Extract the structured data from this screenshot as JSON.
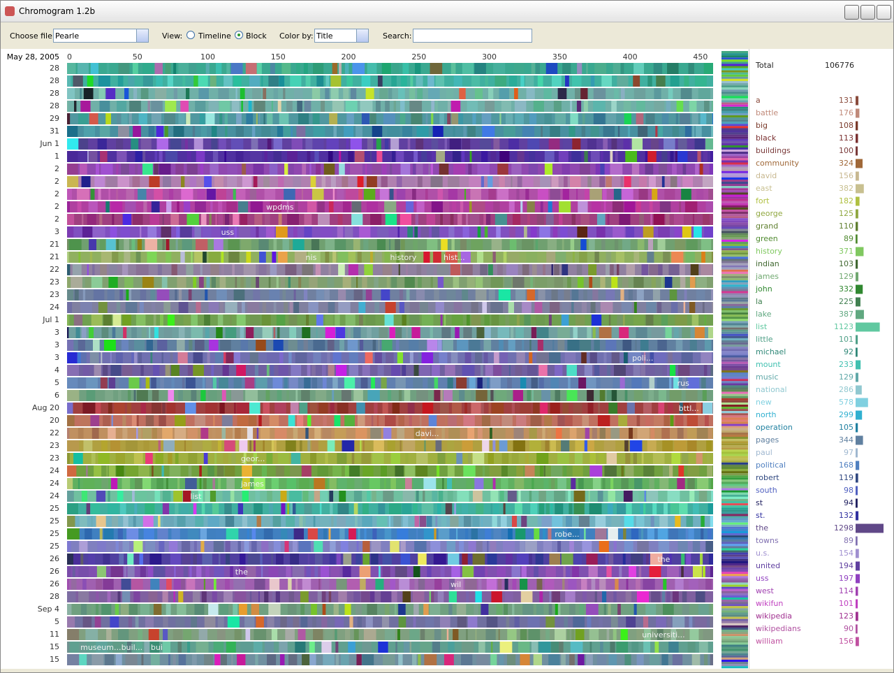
{
  "window": {
    "title": "Chromogram 1.2b"
  },
  "toolbar": {
    "file_label": "Choose file:",
    "file_value": "Pearle",
    "view_label": "View:",
    "view_options": [
      "Timeline",
      "Block"
    ],
    "view_selected": "Block",
    "color_label": "Color by:",
    "color_value": "Title",
    "search_label": "Search:"
  },
  "chart_data": {
    "type": "block",
    "start_label": "May 28, 2005",
    "xlim": [
      0,
      459
    ],
    "xticks": [
      0,
      50,
      100,
      150,
      200,
      250,
      300,
      350,
      400,
      450
    ],
    "rows": [
      {
        "label": "28",
        "color": "#3aa890"
      },
      {
        "label": "28",
        "color": "#40b0a0"
      },
      {
        "label": "28",
        "color": "#70b0a8"
      },
      {
        "label": "28",
        "color": "#70b0a8"
      },
      {
        "label": "29",
        "color": "#5098a0"
      },
      {
        "label": "31",
        "color": "#4890a0"
      },
      {
        "label": "Jun 1",
        "color": "#6040a0"
      },
      {
        "label": "1",
        "color": "#5030a0"
      },
      {
        "label": "2",
        "color": "#9048b0"
      },
      {
        "label": "2",
        "color": "#b080b0"
      },
      {
        "label": "2",
        "color": "#b050a8"
      },
      {
        "label": "2",
        "color": "#b040a0",
        "tags": [
          {
            "text": "wpdms",
            "x": 140
          }
        ]
      },
      {
        "label": "2",
        "color": "#a04080"
      },
      {
        "label": "3",
        "color": "#8050c0",
        "tags": [
          {
            "text": "uss",
            "x": 108
          }
        ]
      },
      {
        "label": "21",
        "color": "#70a070"
      },
      {
        "label": "21",
        "color": "#90b060",
        "tags": [
          {
            "text": "nis",
            "x": 168
          },
          {
            "text": "history",
            "x": 228
          },
          {
            "text": "hist...",
            "x": 266
          }
        ]
      },
      {
        "label": "22",
        "color": "#9080a0"
      },
      {
        "label": "23",
        "color": "#80a070"
      },
      {
        "label": "23",
        "color": "#7080a0"
      },
      {
        "label": "24",
        "color": "#8080a0"
      },
      {
        "label": "Jul 1",
        "color": "#70a050"
      },
      {
        "label": "3",
        "color": "#70a0a0"
      },
      {
        "label": "3",
        "color": "#6080a0"
      },
      {
        "label": "3",
        "color": "#7070b0",
        "tags": [
          {
            "text": "poli...",
            "x": 400
          }
        ]
      },
      {
        "label": "4",
        "color": "#7060a0"
      },
      {
        "label": "5",
        "color": "#6080b0",
        "tags": [
          {
            "text": "rus",
            "x": 432
          }
        ]
      },
      {
        "label": "6",
        "color": "#70a080"
      },
      {
        "label": "Aug 20",
        "color": "#a04040",
        "tags": [
          {
            "text": "bttl...",
            "x": 433
          }
        ]
      },
      {
        "label": "20",
        "color": "#c07060"
      },
      {
        "label": "22",
        "color": "#c09060",
        "tags": [
          {
            "text": "davi...",
            "x": 246
          }
        ]
      },
      {
        "label": "23",
        "color": "#b0a040"
      },
      {
        "label": "23",
        "color": "#a0b040",
        "tags": [
          {
            "text": "geor...",
            "x": 122
          }
        ]
      },
      {
        "label": "24",
        "color": "#70a040"
      },
      {
        "label": "24",
        "color": "#60b060",
        "tags": [
          {
            "text": "james",
            "x": 122
          }
        ]
      },
      {
        "label": "24",
        "color": "#70c0a0",
        "tags": [
          {
            "text": "list",
            "x": 86
          }
        ]
      },
      {
        "label": "25",
        "color": "#40b0a0"
      },
      {
        "label": "25",
        "color": "#70b0c0"
      },
      {
        "label": "25",
        "color": "#4080c0",
        "tags": [
          {
            "text": "robe...",
            "x": 345
          }
        ]
      },
      {
        "label": "25",
        "color": "#8080c0"
      },
      {
        "label": "26",
        "color": "#5040a0",
        "tags": [
          {
            "text": "the",
            "x": 418
          }
        ]
      },
      {
        "label": "26",
        "color": "#8050b0",
        "tags": [
          {
            "text": "the",
            "x": 118
          }
        ]
      },
      {
        "label": "26",
        "color": "#a060b0",
        "tags": [
          {
            "text": "wil",
            "x": 271
          }
        ]
      },
      {
        "label": "28",
        "color": "#8060a0"
      },
      {
        "label": "Sep 4",
        "color": "#70a080"
      },
      {
        "label": "5",
        "color": "#7070a0"
      },
      {
        "label": "11",
        "color": "#80a080",
        "tags": [
          {
            "text": "universiti...",
            "x": 407
          }
        ]
      },
      {
        "label": "15",
        "color": "#60a090",
        "tags": [
          {
            "text": "museum...",
            "x": 8
          },
          {
            "text": "buil...",
            "x": 37
          },
          {
            "text": "bui",
            "x": 58
          }
        ]
      },
      {
        "label": "15",
        "color": "#7090a0"
      }
    ]
  },
  "summary": {
    "total_label": "Total",
    "total": 106776,
    "words": [
      {
        "word": "a",
        "count": 131,
        "color": "#8a4b3c"
      },
      {
        "word": "battle",
        "count": 176,
        "color": "#c08a7a"
      },
      {
        "word": "big",
        "count": 108,
        "color": "#7a3a2a"
      },
      {
        "word": "black",
        "count": 113,
        "color": "#7a3030"
      },
      {
        "word": "buildings",
        "count": 100,
        "color": "#7a3a3a"
      },
      {
        "word": "community",
        "count": 324,
        "color": "#a06838"
      },
      {
        "word": "david",
        "count": 156,
        "color": "#c8b890"
      },
      {
        "word": "east",
        "count": 382,
        "color": "#c8c090"
      },
      {
        "word": "fort",
        "count": 182,
        "color": "#b0c040"
      },
      {
        "word": "george",
        "count": 125,
        "color": "#90a840"
      },
      {
        "word": "grand",
        "count": 110,
        "color": "#608030"
      },
      {
        "word": "green",
        "count": 89,
        "color": "#508a30"
      },
      {
        "word": "history",
        "count": 371,
        "color": "#80c860"
      },
      {
        "word": "indian",
        "count": 103,
        "color": "#406830"
      },
      {
        "word": "james",
        "count": 129,
        "color": "#70a870"
      },
      {
        "word": "john",
        "count": 332,
        "color": "#308830"
      },
      {
        "word": "la",
        "count": 225,
        "color": "#408050"
      },
      {
        "word": "lake",
        "count": 387,
        "color": "#60a880"
      },
      {
        "word": "list",
        "count": 1123,
        "color": "#60c8a0"
      },
      {
        "word": "little",
        "count": 101,
        "color": "#50a088"
      },
      {
        "word": "michael",
        "count": 92,
        "color": "#308878"
      },
      {
        "word": "mount",
        "count": 233,
        "color": "#40c0b0"
      },
      {
        "word": "music",
        "count": 129,
        "color": "#60a8a8"
      },
      {
        "word": "national",
        "count": 286,
        "color": "#90c8d0"
      },
      {
        "word": "new",
        "count": 578,
        "color": "#80d0e0"
      },
      {
        "word": "north",
        "count": 299,
        "color": "#30b0d0"
      },
      {
        "word": "operation",
        "count": 105,
        "color": "#2080a0"
      },
      {
        "word": "pages",
        "count": 344,
        "color": "#6080a0"
      },
      {
        "word": "paul",
        "count": 97,
        "color": "#a0b8d0"
      },
      {
        "word": "political",
        "count": 168,
        "color": "#5080c0"
      },
      {
        "word": "robert",
        "count": 119,
        "color": "#304880"
      },
      {
        "word": "south",
        "count": 98,
        "color": "#5060c0"
      },
      {
        "word": "st",
        "count": 94,
        "color": "#202060"
      },
      {
        "word": "st.",
        "count": 132,
        "color": "#3030a0"
      },
      {
        "word": "the",
        "count": 1298,
        "color": "#604888"
      },
      {
        "word": "towns",
        "count": 89,
        "color": "#8070b0"
      },
      {
        "word": "u.s.",
        "count": 154,
        "color": "#a090d0"
      },
      {
        "word": "united",
        "count": 194,
        "color": "#6040a0"
      },
      {
        "word": "uss",
        "count": 197,
        "color": "#9040c0"
      },
      {
        "word": "west",
        "count": 114,
        "color": "#a040b0"
      },
      {
        "word": "wikifun",
        "count": 101,
        "color": "#c040c0"
      },
      {
        "word": "wikipedia",
        "count": 123,
        "color": "#a03090"
      },
      {
        "word": "wikipedians",
        "count": 90,
        "color": "#b050a0"
      },
      {
        "word": "william",
        "count": 156,
        "color": "#c050a0"
      }
    ]
  }
}
